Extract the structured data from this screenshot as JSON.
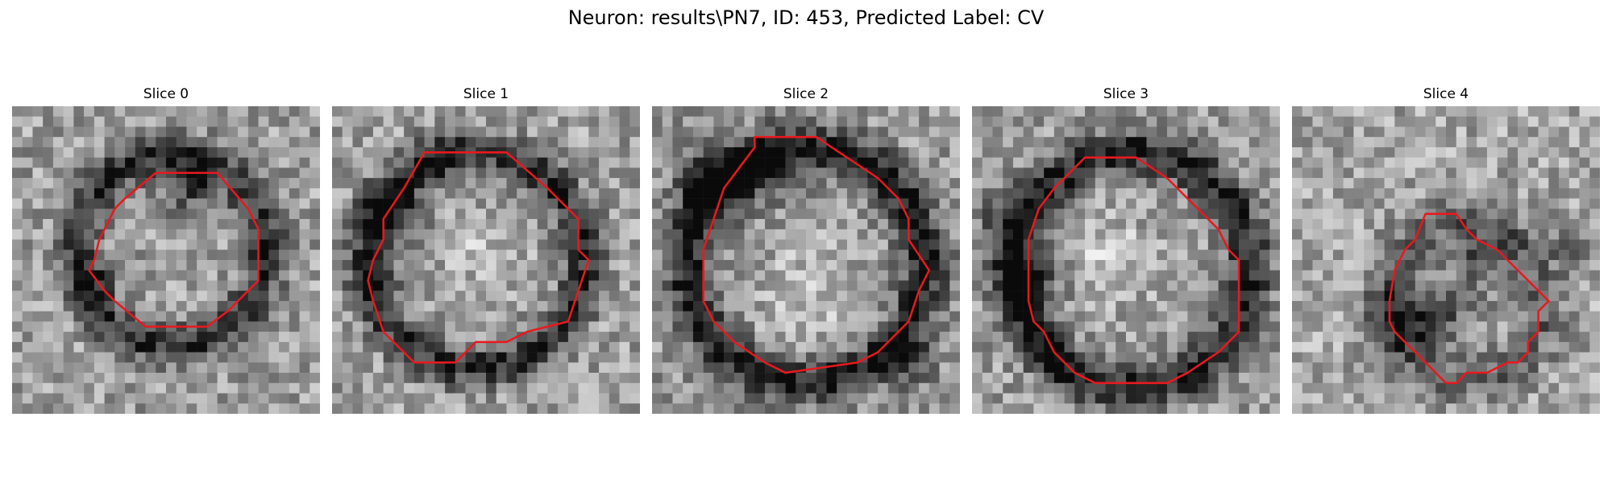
{
  "figure": {
    "title": "Neuron: results\\PN7, ID: 453, Predicted Label: CV",
    "grid_size": 30,
    "outline_color": "#e8191f",
    "colormap": "gray"
  },
  "panels": [
    {
      "title": "Slice 0",
      "seed": 11,
      "outline": [
        [
          14,
          6.5
        ],
        [
          20,
          6.5
        ],
        [
          23,
          10
        ],
        [
          24,
          12
        ],
        [
          24,
          17
        ],
        [
          21,
          20
        ],
        [
          19,
          21.5
        ],
        [
          13,
          21.5
        ],
        [
          10,
          19
        ],
        [
          9,
          18
        ],
        [
          7.5,
          16
        ],
        [
          8,
          15
        ],
        [
          8.5,
          13
        ],
        [
          9,
          12
        ],
        [
          10,
          10
        ],
        [
          11,
          9
        ]
      ],
      "dark_ring": {
        "cx": 15.5,
        "cy": 14,
        "r": 9.2,
        "w": 2.0,
        "strength": 0.45
      },
      "dark_spots": [
        [
          17,
          8,
          2.5,
          0.35
        ],
        [
          8,
          17,
          2,
          0.25
        ]
      ],
      "bright_spots": [],
      "brightness": 0.62,
      "contrast": 0.2
    },
    {
      "title": "Slice 1",
      "seed": 23,
      "outline": [
        [
          9,
          4.5
        ],
        [
          17,
          4.5
        ],
        [
          21,
          8
        ],
        [
          24,
          11
        ],
        [
          24,
          14
        ],
        [
          25,
          15
        ],
        [
          24,
          18
        ],
        [
          23,
          21
        ],
        [
          19,
          22
        ],
        [
          17,
          23
        ],
        [
          14,
          23
        ],
        [
          12,
          25
        ],
        [
          8,
          25
        ],
        [
          6,
          23
        ],
        [
          5,
          22
        ],
        [
          4,
          19
        ],
        [
          3.5,
          17
        ],
        [
          4,
          15
        ],
        [
          5,
          13
        ],
        [
          5,
          11
        ],
        [
          7,
          8
        ]
      ],
      "dark_ring": {
        "cx": 14,
        "cy": 15,
        "r": 10.5,
        "w": 2.0,
        "strength": 0.45
      },
      "dark_spots": [
        [
          6,
          10,
          3,
          0.35
        ],
        [
          4,
          17,
          2,
          0.3
        ],
        [
          10,
          5,
          2,
          0.2
        ]
      ],
      "bright_spots": [
        [
          14,
          14,
          3,
          0.12
        ]
      ],
      "brightness": 0.63,
      "contrast": 0.2
    },
    {
      "title": "Slice 2",
      "seed": 37,
      "outline": [
        [
          10,
          3
        ],
        [
          16,
          3
        ],
        [
          19,
          5
        ],
        [
          22,
          7
        ],
        [
          24,
          9
        ],
        [
          25,
          11
        ],
        [
          25,
          13
        ],
        [
          27,
          16
        ],
        [
          26,
          18
        ],
        [
          25,
          21
        ],
        [
          24,
          22
        ],
        [
          22,
          24
        ],
        [
          20,
          25
        ],
        [
          13,
          26
        ],
        [
          11,
          25
        ],
        [
          8,
          23
        ],
        [
          6,
          21
        ],
        [
          5,
          19
        ],
        [
          5,
          14
        ],
        [
          6,
          11
        ],
        [
          7,
          8
        ],
        [
          10,
          4
        ]
      ],
      "dark_ring": {
        "cx": 15,
        "cy": 15.5,
        "r": 11.5,
        "w": 2.2,
        "strength": 0.5
      },
      "dark_spots": [
        [
          6,
          8,
          3.5,
          0.4
        ],
        [
          11,
          6,
          3,
          0.35
        ],
        [
          25,
          25,
          2.5,
          0.3
        ]
      ],
      "bright_spots": [
        [
          15,
          18,
          5,
          0.15
        ]
      ],
      "brightness": 0.6,
      "contrast": 0.2
    },
    {
      "title": "Slice 3",
      "seed": 53,
      "outline": [
        [
          11,
          5
        ],
        [
          16,
          5
        ],
        [
          19,
          7
        ],
        [
          21,
          9
        ],
        [
          24,
          12
        ],
        [
          25,
          14
        ],
        [
          26,
          15
        ],
        [
          26,
          22
        ],
        [
          25,
          23
        ],
        [
          24,
          24
        ],
        [
          21,
          26
        ],
        [
          19,
          27
        ],
        [
          12,
          27
        ],
        [
          10,
          26
        ],
        [
          8,
          24
        ],
        [
          7,
          22
        ],
        [
          6,
          21
        ],
        [
          5.5,
          19
        ],
        [
          5.5,
          13
        ],
        [
          6.5,
          10
        ],
        [
          8,
          8
        ]
      ],
      "dark_ring": {
        "cx": 15.5,
        "cy": 16,
        "r": 11.5,
        "w": 2.2,
        "strength": 0.5
      },
      "dark_spots": [
        [
          6,
          17,
          3,
          0.35
        ],
        [
          3,
          11,
          2.5,
          0.25
        ],
        [
          8,
          24,
          2,
          0.25
        ]
      ],
      "bright_spots": [
        [
          13,
          15,
          4,
          0.18
        ]
      ],
      "brightness": 0.62,
      "contrast": 0.2
    },
    {
      "title": "Slice 4",
      "seed": 71,
      "outline": [
        [
          13,
          10.5
        ],
        [
          16,
          10.5
        ],
        [
          17,
          12
        ],
        [
          18,
          13
        ],
        [
          20,
          14
        ],
        [
          21,
          15
        ],
        [
          22,
          16
        ],
        [
          24,
          18
        ],
        [
          25,
          19
        ],
        [
          24,
          20
        ],
        [
          24,
          22
        ],
        [
          23,
          23
        ],
        [
          23,
          24
        ],
        [
          22,
          25
        ],
        [
          21,
          25
        ],
        [
          19,
          26
        ],
        [
          17,
          26
        ],
        [
          16,
          27
        ],
        [
          15,
          27
        ],
        [
          14,
          26
        ],
        [
          13,
          25
        ],
        [
          11,
          23
        ],
        [
          10,
          22
        ],
        [
          9.5,
          21
        ],
        [
          9.5,
          19
        ],
        [
          10,
          16
        ],
        [
          11,
          14
        ],
        [
          12,
          13
        ]
      ],
      "dark_ring": {
        "cx": 17,
        "cy": 19,
        "r": 7.5,
        "w": 2.5,
        "strength": 0.25
      },
      "dark_spots": [
        [
          11,
          21,
          3,
          0.4
        ],
        [
          19,
          15,
          3,
          0.3
        ],
        [
          27,
          13,
          2,
          0.25
        ],
        [
          15,
          20,
          3,
          0.25
        ]
      ],
      "bright_spots": [],
      "brightness": 0.65,
      "contrast": 0.2
    }
  ]
}
